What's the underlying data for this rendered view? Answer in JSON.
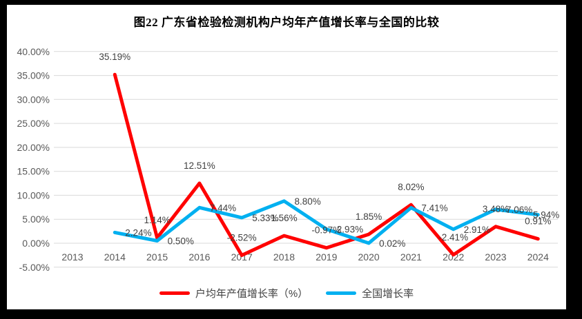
{
  "title": "图22  广东省检验检测机构户均年产值增长率与全国的比较",
  "chart_data": {
    "type": "line",
    "title": "图22  广东省检验检测机构户均年产值增长率与全国的比较",
    "categories": [
      "2013",
      "2014",
      "2015",
      "2016",
      "2017",
      "2018",
      "2019",
      "2020",
      "2021",
      "2022",
      "2023",
      "2024"
    ],
    "series": [
      {
        "name": "户均年产值增长率（%）",
        "color": "#FF0000",
        "label_position": "above",
        "values": [
          null,
          35.19,
          1.14,
          12.51,
          -2.52,
          1.56,
          -0.97,
          1.85,
          8.02,
          -2.41,
          3.48,
          0.91
        ]
      },
      {
        "name": "全国增长率",
        "color": "#00B0F0",
        "label_position": "right",
        "values": [
          null,
          2.24,
          0.5,
          7.44,
          5.33,
          8.8,
          2.93,
          0.02,
          7.41,
          2.91,
          7.06,
          5.94
        ]
      }
    ],
    "ylim": [
      -5,
      40
    ],
    "y_tick_step": 5,
    "y_tick_format": "percent_2dp",
    "y_tick_labels": [
      "40.00%",
      "35.00%",
      "30.00%",
      "25.00%",
      "20.00%",
      "15.00%",
      "10.00%",
      "5.00%",
      "0.00%",
      "-5.00%"
    ],
    "grid": "horizontal",
    "grid_color": "#D9D9D9",
    "axis_text_color": "#595959",
    "data_label_color": "#404040",
    "show_data_labels": true,
    "legend_position": "bottom"
  }
}
